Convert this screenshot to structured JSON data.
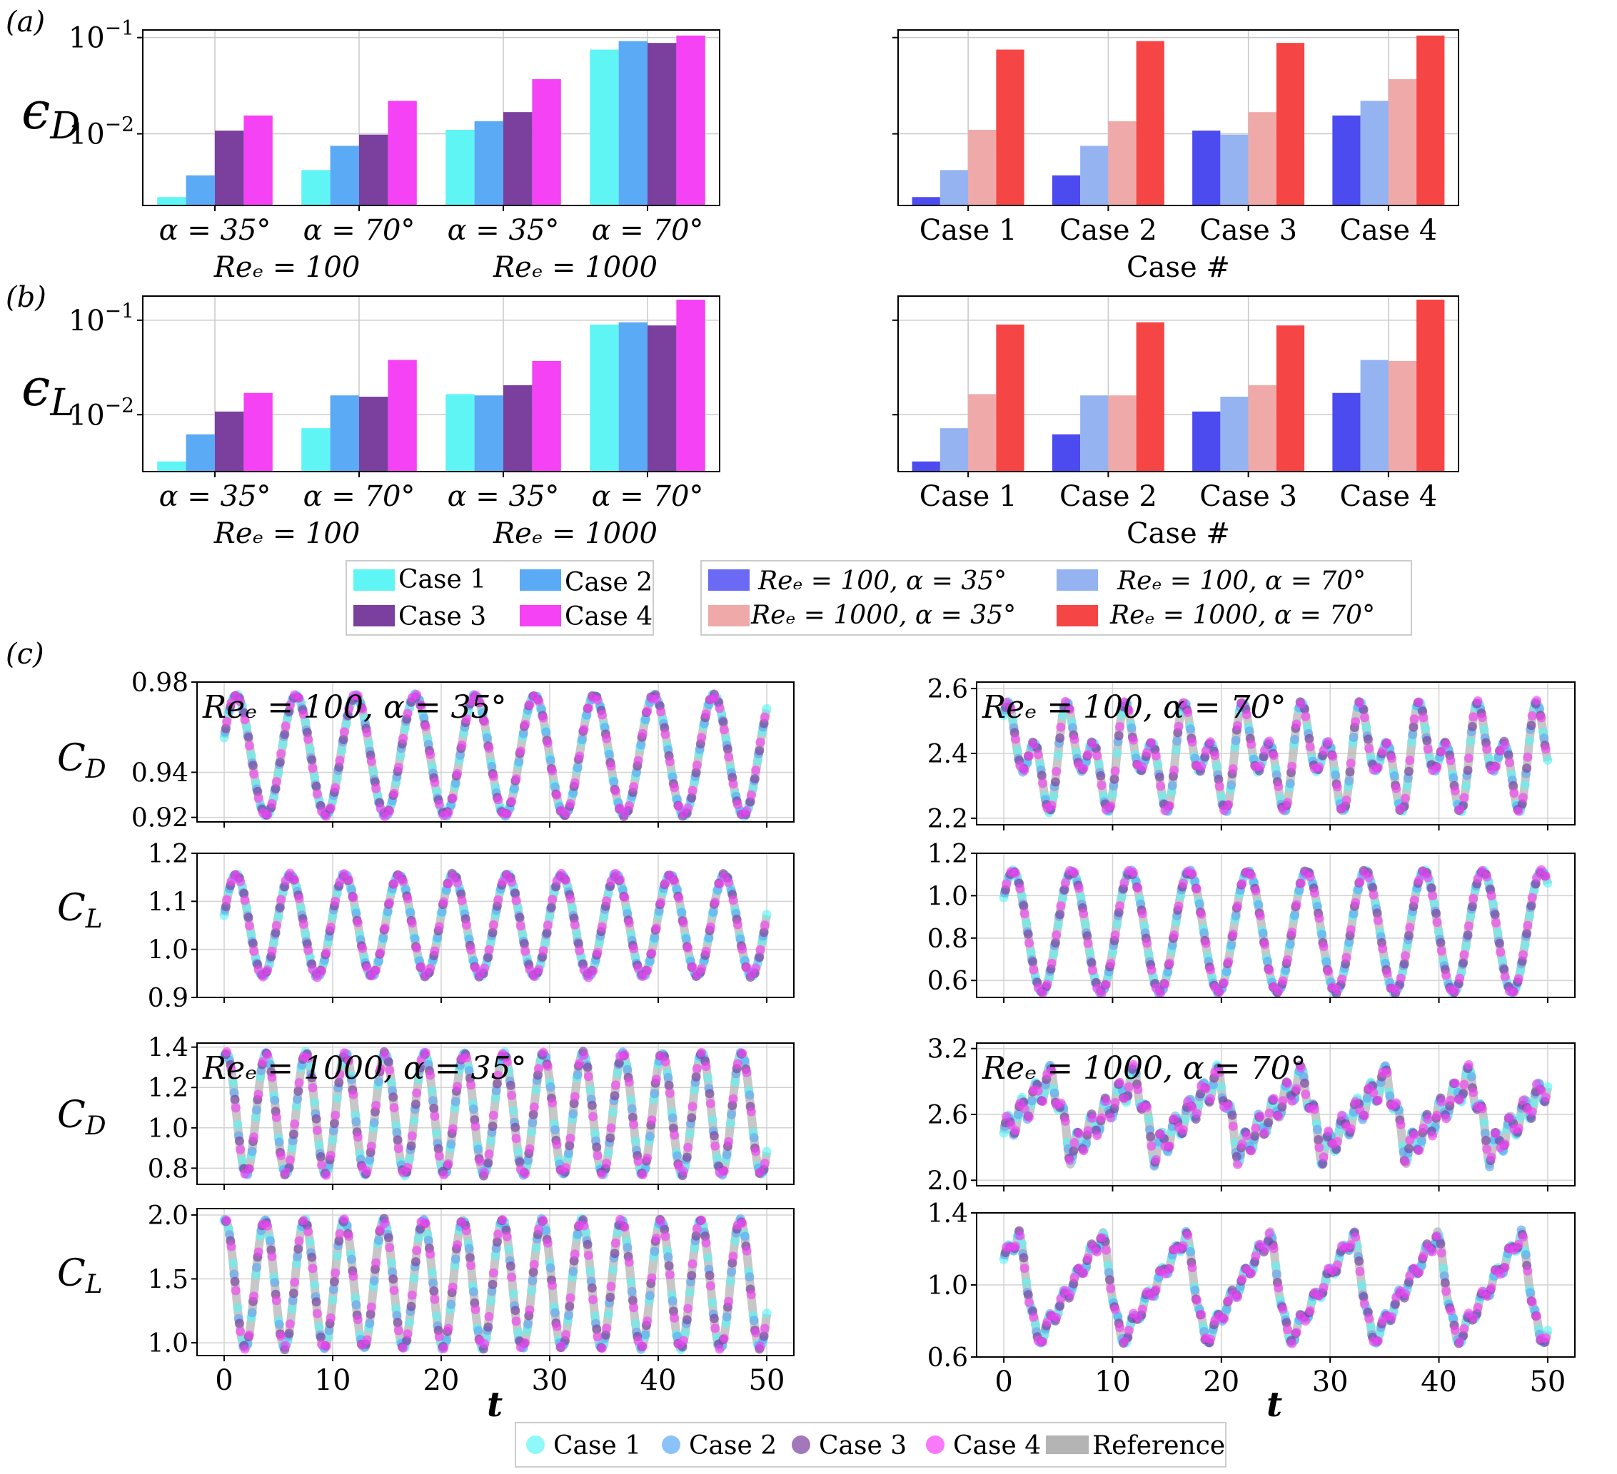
{
  "colors": {
    "case1": "#5ff5f5",
    "case2": "#5aaaf5",
    "case3": "#7b3f9e",
    "case4": "#f542f5",
    "combo1": "#4b4bf0",
    "combo2": "#94b3f0",
    "combo3": "#f0a9a9",
    "combo4": "#f54545",
    "reference": "#b4b4b4"
  },
  "panel_labels": {
    "a": "(a)",
    "b": "(b)",
    "c": "(c)"
  },
  "text": {
    "epsD": "ϵ",
    "epsD_sub": "D",
    "epsL": "ϵ",
    "epsL_sub": "L",
    "cd": "C",
    "cd_sub": "D",
    "cl": "C",
    "cl_sub": "L",
    "case_hash": "Case #",
    "t": "t"
  },
  "chart_data": [
    {
      "id": "a_left",
      "type": "bar",
      "yscale": "log",
      "ylim": [
        0.0018,
        0.12
      ],
      "ylabel": "ϵ_D",
      "group_labels": [
        "α = 35°",
        "α = 70°",
        "α = 35°",
        "α = 70°"
      ],
      "re_labels": [
        "Reₑ = 100",
        "Reₑ = 1000"
      ],
      "series": [
        {
          "name": "Case 1",
          "values": [
            0.0022,
            0.0042,
            0.011,
            0.075
          ]
        },
        {
          "name": "Case 2",
          "values": [
            0.0037,
            0.0075,
            0.0135,
            0.092
          ]
        },
        {
          "name": "Case 3",
          "values": [
            0.0108,
            0.0098,
            0.0168,
            0.088
          ]
        },
        {
          "name": "Case 4",
          "values": [
            0.0155,
            0.022,
            0.037,
            0.105
          ]
        }
      ]
    },
    {
      "id": "a_right",
      "type": "bar",
      "yscale": "log",
      "ylim": [
        0.0018,
        0.12
      ],
      "categories": [
        "Case 1",
        "Case 2",
        "Case 3",
        "Case 4"
      ],
      "xlabel": "Case #",
      "series": [
        {
          "name": "Reₑ = 100, α = 35°",
          "values": [
            0.0022,
            0.0037,
            0.0108,
            0.0155
          ]
        },
        {
          "name": "Reₑ = 100, α = 70°",
          "values": [
            0.0042,
            0.0075,
            0.0098,
            0.022
          ]
        },
        {
          "name": "Reₑ = 1000, α = 35°",
          "values": [
            0.011,
            0.0135,
            0.0168,
            0.037
          ]
        },
        {
          "name": "Reₑ = 1000, α = 70°",
          "values": [
            0.075,
            0.092,
            0.088,
            0.105
          ]
        }
      ]
    },
    {
      "id": "b_left",
      "type": "bar",
      "yscale": "log",
      "ylim": [
        0.0025,
        0.18
      ],
      "ylabel": "ϵ_L",
      "group_labels": [
        "α = 35°",
        "α = 70°",
        "α = 35°",
        "α = 70°"
      ],
      "re_labels": [
        "Reₑ = 100",
        "Reₑ = 1000"
      ],
      "series": [
        {
          "name": "Case 1",
          "values": [
            0.0032,
            0.0072,
            0.0165,
            0.09
          ]
        },
        {
          "name": "Case 2",
          "values": [
            0.0062,
            0.016,
            0.016,
            0.095
          ]
        },
        {
          "name": "Case 3",
          "values": [
            0.0108,
            0.0155,
            0.0205,
            0.088
          ]
        },
        {
          "name": "Case 4",
          "values": [
            0.017,
            0.038,
            0.037,
            0.165
          ]
        }
      ]
    },
    {
      "id": "b_right",
      "type": "bar",
      "yscale": "log",
      "ylim": [
        0.0025,
        0.18
      ],
      "categories": [
        "Case 1",
        "Case 2",
        "Case 3",
        "Case 4"
      ],
      "xlabel": "Case #",
      "series": [
        {
          "name": "Reₑ = 100, α = 35°",
          "values": [
            0.0032,
            0.0062,
            0.0108,
            0.017
          ]
        },
        {
          "name": "Reₑ = 100, α = 70°",
          "values": [
            0.0072,
            0.016,
            0.0155,
            0.038
          ]
        },
        {
          "name": "Reₑ = 1000, α = 35°",
          "values": [
            0.0165,
            0.016,
            0.0205,
            0.037
          ]
        },
        {
          "name": "Reₑ = 1000, α = 70°",
          "values": [
            0.09,
            0.095,
            0.088,
            0.165
          ]
        }
      ]
    },
    {
      "id": "c_cd_100_35",
      "type": "scatter",
      "title": "Reₑ = 100, α = 35°",
      "ylabel": "C_D",
      "xlim": [
        -2.5,
        52.5
      ],
      "ylim": [
        0.918,
        0.98
      ],
      "yticks": [
        0.92,
        0.94,
        0.98
      ],
      "ytick_labels": [
        "0.92",
        "0.94",
        "0.98"
      ],
      "signal": {
        "kind": "sin",
        "mean": 0.9475,
        "amp": 0.0265,
        "period": 5.5,
        "phase": 0.3
      },
      "series": [
        "Case 1",
        "Case 2",
        "Case 3",
        "Case 4",
        "Reference"
      ]
    },
    {
      "id": "c_cl_100_35",
      "type": "scatter",
      "ylabel": "C_L",
      "xlim": [
        -2.5,
        52.5
      ],
      "ylim": [
        0.9,
        1.2
      ],
      "yticks": [
        0.9,
        1.0,
        1.1,
        1.2
      ],
      "ytick_labels": [
        "0.9",
        "1.0",
        "1.1",
        "1.2"
      ],
      "signal": {
        "kind": "sin",
        "mean": 1.05,
        "amp": 0.105,
        "period": 5.0,
        "phase": 0.2
      },
      "series": [
        "Case 1",
        "Case 2",
        "Case 3",
        "Case 4",
        "Reference"
      ]
    },
    {
      "id": "c_cd_1000_35",
      "type": "scatter",
      "title": "Reₑ = 1000, α = 35°",
      "ylabel": "C_D",
      "xlim": [
        -2.5,
        52.5
      ],
      "ylim": [
        0.72,
        1.42
      ],
      "yticks": [
        0.8,
        1.0,
        1.2,
        1.4
      ],
      "ytick_labels": [
        "0.8",
        "1.0",
        "1.2",
        "1.4"
      ],
      "signal": {
        "kind": "sin",
        "mean": 1.07,
        "amp": 0.3,
        "period": 3.65,
        "phase": 1.2
      },
      "series": [
        "Case 1",
        "Case 2",
        "Case 3",
        "Case 4",
        "Reference"
      ]
    },
    {
      "id": "c_cl_1000_35",
      "type": "scatter",
      "ylabel": "C_L",
      "xlim": [
        -2.5,
        52.5
      ],
      "ylim": [
        0.9,
        2.05
      ],
      "yticks": [
        1.0,
        1.5,
        2.0
      ],
      "ytick_labels": [
        "1.0",
        "1.5",
        "2.0"
      ],
      "signal": {
        "kind": "sin",
        "mean": 1.46,
        "amp": 0.5,
        "period": 3.65,
        "phase": 1.4
      },
      "series": [
        "Case 1",
        "Case 2",
        "Case 3",
        "Case 4",
        "Reference"
      ]
    },
    {
      "id": "c_cd_100_70",
      "type": "scatter",
      "title": "Reₑ = 100, α = 70°",
      "xlim": [
        -2.5,
        52.5
      ],
      "ylim": [
        2.18,
        2.62
      ],
      "yticks": [
        2.2,
        2.4,
        2.6
      ],
      "ytick_labels": [
        "2.2",
        "2.4",
        "2.6"
      ],
      "signal": {
        "kind": "double",
        "mean": 2.39,
        "amp": 0.09,
        "amp2": 0.1,
        "period": 5.4,
        "phase": 0.5
      },
      "series": [
        "Case 1",
        "Case 2",
        "Case 3",
        "Case 4",
        "Reference"
      ]
    },
    {
      "id": "c_cl_100_70",
      "type": "scatter",
      "xlim": [
        -2.5,
        52.5
      ],
      "ylim": [
        0.52,
        1.2
      ],
      "yticks": [
        0.6,
        0.8,
        1.0,
        1.2
      ],
      "ytick_labels": [
        "0.6",
        "0.8",
        "1.0",
        "1.2"
      ],
      "signal": {
        "kind": "sin",
        "mean": 0.83,
        "amp": 0.285,
        "period": 5.4,
        "phase": 0.6
      },
      "series": [
        "Case 1",
        "Case 2",
        "Case 3",
        "Case 4",
        "Reference"
      ]
    },
    {
      "id": "c_cd_1000_70",
      "type": "scatter",
      "title": "Reₑ = 1000, α = 70°",
      "xlim": [
        -2.5,
        52.5
      ],
      "ylim": [
        1.95,
        3.25
      ],
      "yticks": [
        2.0,
        2.6,
        3.2
      ],
      "ytick_labels": [
        "2.0",
        "2.6",
        "3.2"
      ],
      "signal": {
        "kind": "saw",
        "mean": 2.6,
        "amp": 0.35,
        "amp2": 0.12,
        "period": 7.7,
        "phase": 0.2
      },
      "series": [
        "Case 1",
        "Case 2",
        "Case 3",
        "Case 4",
        "Reference"
      ]
    },
    {
      "id": "c_cl_1000_70",
      "type": "scatter",
      "xlim": [
        -2.5,
        52.5
      ],
      "ylim": [
        0.6,
        1.4
      ],
      "yticks": [
        0.6,
        1.0,
        1.4
      ],
      "ytick_labels": [
        "0.6",
        "1.0",
        "1.4"
      ],
      "xticks": [
        0,
        10,
        20,
        30,
        40,
        50
      ],
      "xlabel": "t",
      "signal": {
        "kind": "saw",
        "mean": 0.98,
        "amp": 0.3,
        "amp2": 0.04,
        "period": 7.7,
        "phase": 0.6
      },
      "series": [
        "Case 1",
        "Case 2",
        "Case 3",
        "Case 4",
        "Reference"
      ]
    }
  ],
  "legend_cases": [
    "Case 1",
    "Case 2",
    "Case 3",
    "Case 4"
  ],
  "legend_combos": [
    "Reₑ = 100, α = 35°",
    "Reₑ = 100, α = 70°",
    "Reₑ = 1000, α = 35°",
    "Reₑ = 1000, α = 70°"
  ],
  "legend_bottom": [
    "Case 1",
    "Case 2",
    "Case 3",
    "Case 4",
    "Reference"
  ],
  "x_tick_labels": [
    "0",
    "10",
    "20",
    "30",
    "40",
    "50"
  ]
}
